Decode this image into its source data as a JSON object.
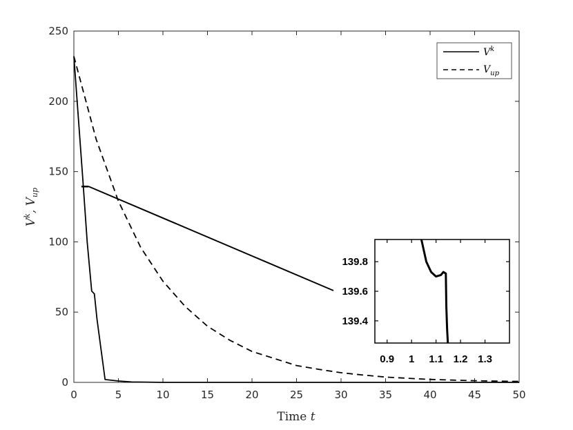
{
  "chart_data": [
    {
      "type": "line",
      "xlabel": "Time t",
      "ylabel": "V^k, V_up",
      "xlim": [
        0,
        50
      ],
      "ylim": [
        0,
        250
      ],
      "xticks": [
        "0",
        "5",
        "10",
        "15",
        "20",
        "25",
        "30",
        "35",
        "40",
        "45",
        "50"
      ],
      "yticks": [
        "0",
        "50",
        "100",
        "150",
        "200",
        "250"
      ],
      "grid": false,
      "legend_position": "top-right",
      "series": [
        {
          "name": "V^k",
          "style": "solid",
          "color": "#000000",
          "x": [
            0,
            1.0,
            1.5,
            2.0,
            2.3,
            2.6,
            3.5,
            5,
            6.5,
            10,
            20,
            30,
            40,
            50
          ],
          "y": [
            232,
            145,
            100,
            65,
            63,
            45,
            2,
            1,
            0.3,
            0,
            0,
            0,
            0,
            0
          ]
        },
        {
          "name": "V_up",
          "style": "dashed",
          "color": "#000000",
          "x": [
            0,
            2.5,
            5,
            7.5,
            10,
            12.5,
            15,
            17.5,
            20,
            22.5,
            25,
            27.5,
            30,
            32.5,
            35,
            37.5,
            40,
            42.5,
            45,
            47.5,
            50
          ],
          "y": [
            232,
            173,
            129,
            96,
            72,
            54,
            40,
            30,
            22,
            17,
            12,
            9.3,
            6.9,
            5.2,
            3.8,
            2.9,
            2.1,
            1.6,
            1.2,
            0.9,
            0.7
          ]
        }
      ]
    },
    {
      "type": "line",
      "role": "inset",
      "xlim": [
        0.85,
        1.4
      ],
      "ylim": [
        139.25,
        139.95
      ],
      "xticks": [
        "0.9",
        "1",
        "1.1",
        "1.2",
        "1.3"
      ],
      "yticks": [
        "139.4",
        "139.6",
        "139.8"
      ],
      "series": [
        {
          "style": "solid",
          "color": "#000000",
          "x": [
            1.04,
            1.06,
            1.08,
            1.1,
            1.12,
            1.13,
            1.14,
            1.142,
            1.145,
            1.148
          ],
          "y": [
            139.95,
            139.8,
            139.73,
            139.7,
            139.71,
            139.73,
            139.72,
            139.5,
            139.35,
            139.25
          ]
        }
      ]
    }
  ],
  "legend": {
    "items": [
      {
        "base": "V",
        "sup": "k",
        "sub": ""
      },
      {
        "base": "V",
        "sup": "",
        "sub": "up"
      }
    ]
  },
  "labels": {
    "xlabel_text": "Time ",
    "xlabel_var": "t",
    "ylabel_v": "V",
    "ylabel_sup": "k",
    "ylabel_sep": ", V",
    "ylabel_sub": "up"
  }
}
